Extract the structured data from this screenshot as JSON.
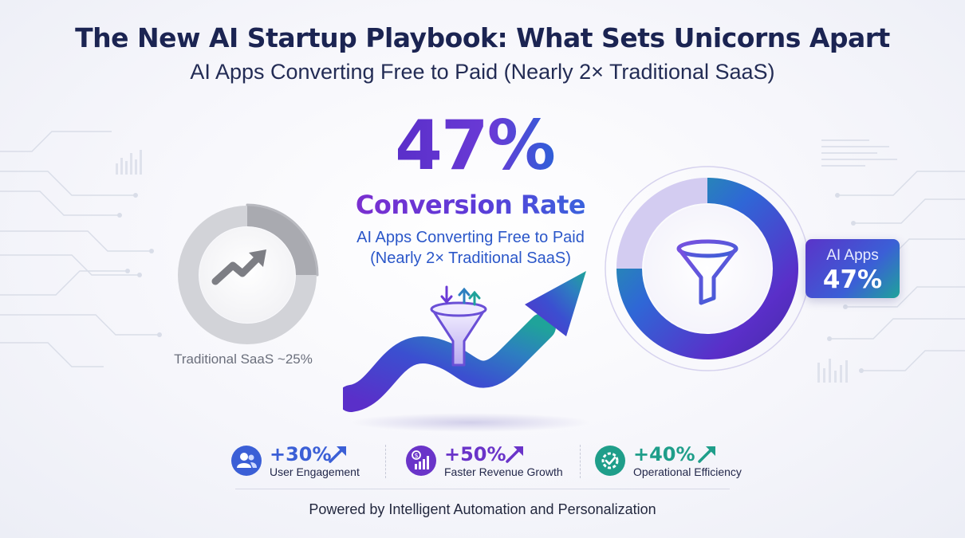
{
  "title": "The New AI Startup Playbook: What Sets Unicorns Apart",
  "subtitle": "AI Apps Converting Free to Paid (Nearly 2× Traditional SaaS)",
  "hero": {
    "percent": "47%",
    "headline": "Conversion Rate",
    "description_line1": "AI Apps Converting Free to Paid",
    "description_line2": "(Nearly 2× Traditional SaaS)"
  },
  "traditional_saas": {
    "label": "Traditional SaaS ~25%",
    "value_percent": 25,
    "icon": "trend-up-icon"
  },
  "ai_apps": {
    "label": "AI Apps",
    "value": "47%",
    "value_percent": 47,
    "icon": "funnel-icon"
  },
  "stats": [
    {
      "value": "+30%",
      "label": "User Engagement",
      "icon": "users-icon",
      "color": "#3b5fd6"
    },
    {
      "value": "+50%",
      "label": "Faster Revenue Growth",
      "icon": "revenue-chart-icon",
      "color": "#6a34c9"
    },
    {
      "value": "+40%",
      "label": "Operational Efficiency",
      "icon": "gear-check-icon",
      "color": "#1f9e8a"
    }
  ],
  "footer": "Powered by Intelligent Automation and Personalization",
  "colors": {
    "title": "#1b2452",
    "purple": "#6a34c9",
    "blue": "#3b5fd6",
    "teal": "#1f9e8a",
    "gray_ring": "#c9c9cd"
  }
}
